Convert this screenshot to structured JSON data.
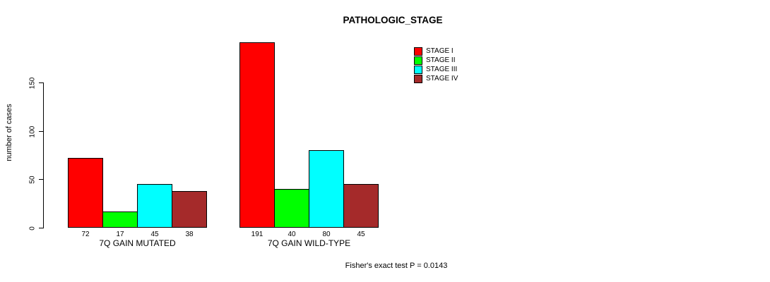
{
  "chart_data": {
    "type": "bar",
    "title": "PATHOLOGIC_STAGE",
    "ylabel": "number of cases",
    "xlabel": "",
    "annotation": "Fisher's exact test P = 0.0143",
    "groups": [
      "7Q GAIN MUTATED",
      "7Q GAIN WILD-TYPE"
    ],
    "series": [
      {
        "name": "STAGE I",
        "color": "#FF0000",
        "values": [
          72,
          191
        ]
      },
      {
        "name": "STAGE II",
        "color": "#00FF00",
        "values": [
          17,
          40
        ]
      },
      {
        "name": "STAGE III",
        "color": "#00FFFF",
        "values": [
          45,
          80
        ]
      },
      {
        "name": "STAGE IV",
        "color": "#A52A2A",
        "values": [
          38,
          45
        ]
      }
    ],
    "y_ticks": [
      0,
      50,
      100,
      150
    ],
    "ylim": [
      0,
      195
    ],
    "grid": false,
    "legend_position": "top-right",
    "show_bar_values": true,
    "bar_border_color": "#000000",
    "background_color": "#FFFFFF"
  }
}
